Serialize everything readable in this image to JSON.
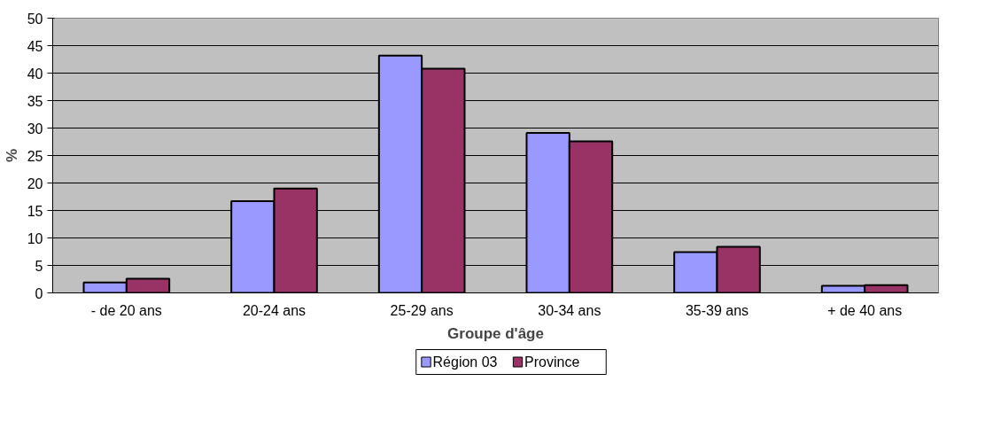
{
  "chart_data": {
    "type": "bar",
    "xlabel": "Groupe d'âge",
    "ylabel": "%",
    "categories": [
      "- de 20 ans",
      "20-24 ans",
      "25-29 ans",
      "30-34 ans",
      "35-39 ans",
      "+ de 40 ans"
    ],
    "series": [
      {
        "name": "Région 03",
        "color": "#9999ff",
        "values": [
          1.9,
          16.7,
          43.2,
          29.1,
          7.4,
          1.3
        ]
      },
      {
        "name": "Province",
        "color": "#993366",
        "values": [
          2.6,
          19.0,
          40.8,
          27.6,
          8.4,
          1.4
        ]
      }
    ],
    "ylim": [
      0,
      50
    ],
    "yticks": [
      0,
      5,
      10,
      15,
      20,
      25,
      30,
      35,
      40,
      45,
      50
    ],
    "grid": "y",
    "legend": "bottom"
  }
}
